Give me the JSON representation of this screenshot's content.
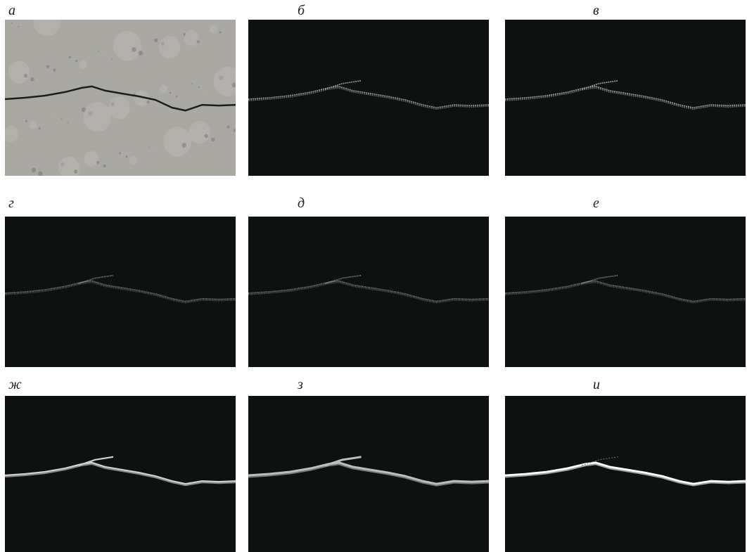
{
  "panels": [
    {
      "label": "а"
    },
    {
      "label": "б"
    },
    {
      "label": "в"
    },
    {
      "label": "г"
    },
    {
      "label": "д"
    },
    {
      "label": "е"
    },
    {
      "label": "ж"
    },
    {
      "label": "з"
    },
    {
      "label": "и"
    }
  ]
}
